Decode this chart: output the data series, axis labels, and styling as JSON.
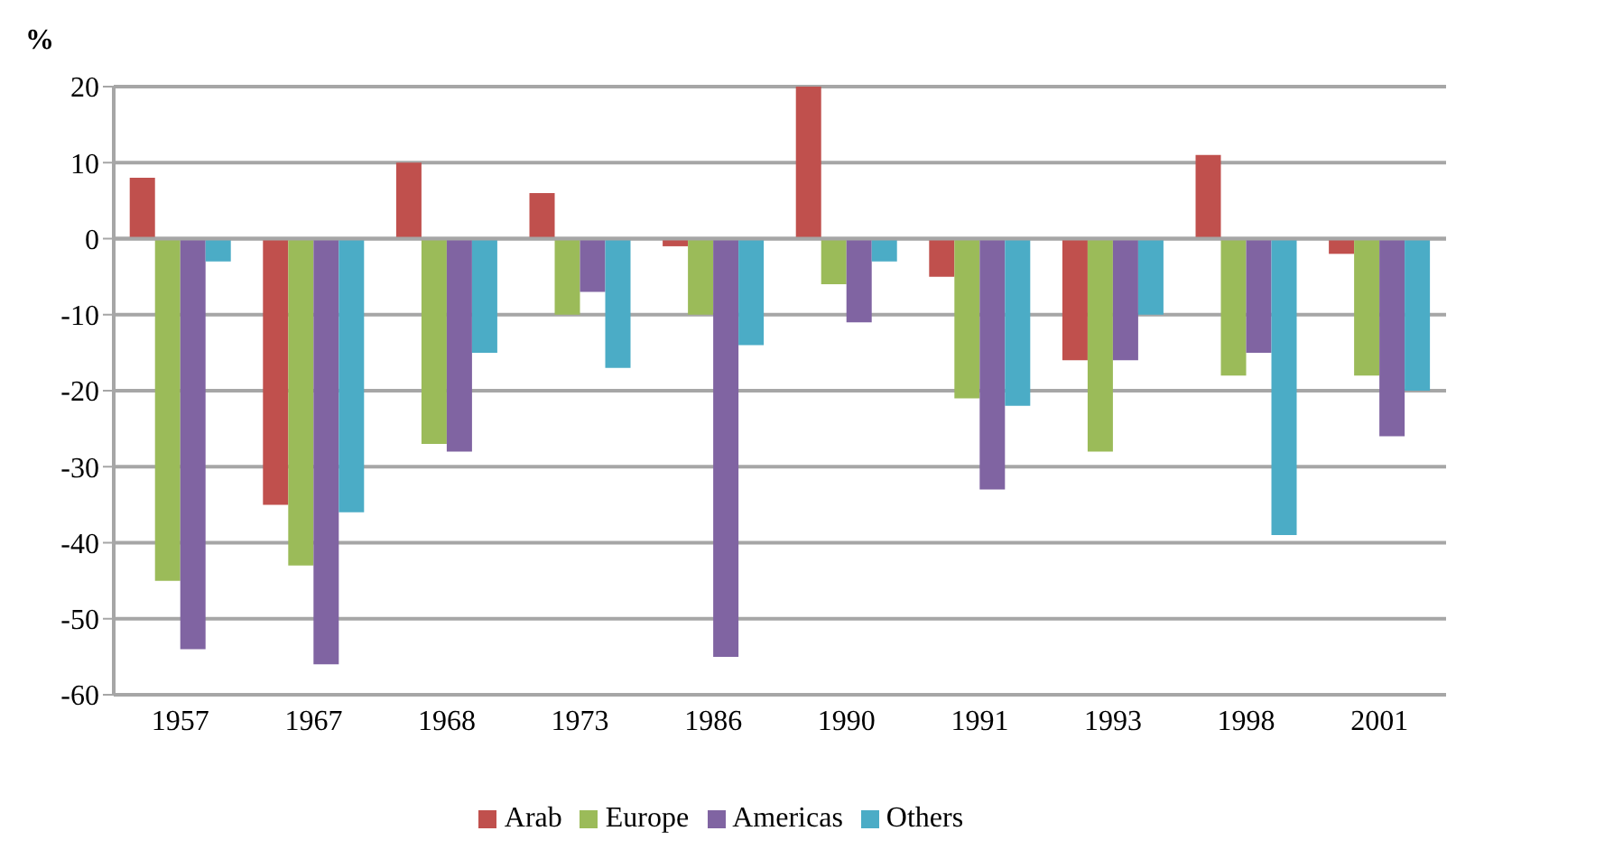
{
  "chart_data": {
    "type": "bar",
    "ylabel": "%",
    "categories": [
      "1957",
      "1967",
      "1968",
      "1973",
      "1986",
      "1990",
      "1991",
      "1993",
      "1998",
      "2001"
    ],
    "series": [
      {
        "name": "Arab",
        "color": "#c0504d",
        "values": [
          8,
          -35,
          10,
          6,
          -1,
          20,
          -5,
          -16,
          11,
          -2
        ]
      },
      {
        "name": "Europe",
        "color": "#9bbb59",
        "values": [
          -45,
          -43,
          -27,
          -10,
          -10,
          -6,
          -21,
          -28,
          -18,
          -18
        ]
      },
      {
        "name": "Americas",
        "color": "#8064a2",
        "values": [
          -54,
          -56,
          -28,
          -7,
          -55,
          -11,
          -33,
          -16,
          -15,
          -26
        ]
      },
      {
        "name": "Others",
        "color": "#4bacc6",
        "values": [
          -3,
          -36,
          -15,
          -17,
          -14,
          -3,
          -22,
          -10,
          -39,
          -20
        ]
      }
    ],
    "ylim": [
      -60,
      20
    ],
    "yticks": [
      -60,
      -50,
      -40,
      -30,
      -20,
      -10,
      0,
      10,
      20
    ],
    "grid": "y",
    "legend": "bottom"
  }
}
